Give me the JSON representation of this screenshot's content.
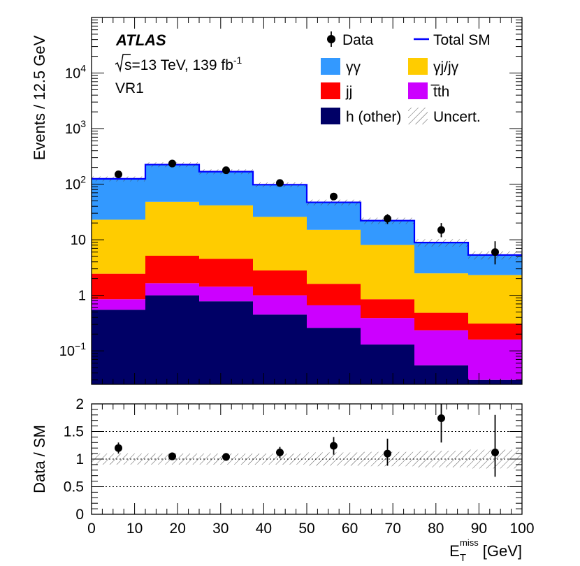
{
  "chart_data": [
    {
      "type": "stacked-histogram",
      "yscale": "log",
      "experiment": "ATLAS",
      "energy_prefix": "s=13 TeV, 139 fb",
      "energy_exp": "-1",
      "region": "VR1",
      "ylabel": "Events / 12.5 GeV",
      "ylim": [
        0.025,
        100000
      ],
      "y_ticks": [
        {
          "value": 0.1,
          "base": "10",
          "exp": "−1"
        },
        {
          "value": 1,
          "base": "1",
          "exp": ""
        },
        {
          "value": 10,
          "base": "10",
          "exp": ""
        },
        {
          "value": 100,
          "base": "10",
          "exp": "2"
        },
        {
          "value": 1000,
          "base": "10",
          "exp": "3"
        },
        {
          "value": 10000,
          "base": "10",
          "exp": "4"
        }
      ],
      "bin_edges": [
        0,
        12.5,
        25,
        37.5,
        50,
        62.5,
        75,
        87.5,
        100
      ],
      "stack": [
        {
          "name": "h (other)",
          "color": "#000066",
          "values": [
            0.55,
            1.0,
            0.78,
            0.45,
            0.26,
            0.13,
            0.055,
            0.03
          ]
        },
        {
          "name": "t̅th",
          "color": "#cc00ff",
          "values": [
            0.3,
            0.65,
            0.65,
            0.55,
            0.4,
            0.26,
            0.18,
            0.13
          ]
        },
        {
          "name": "jj",
          "color": "#ff0000",
          "values": [
            1.6,
            3.5,
            3.1,
            1.8,
            0.95,
            0.46,
            0.25,
            0.15
          ]
        },
        {
          "name": "γj/jγ",
          "color": "#ffcc00",
          "values": [
            20.5,
            43,
            37,
            23,
            13.5,
            7.2,
            2.0,
            2.0
          ]
        },
        {
          "name": "γγ",
          "color": "#3399ff",
          "values": [
            103,
            180,
            127,
            72,
            32,
            14,
            6.4,
            3.0
          ]
        }
      ],
      "total_sm": {
        "name": "Total SM",
        "color": "#0000ff",
        "values": [
          125,
          225,
          168,
          97.8,
          47.1,
          22.05,
          8.89,
          5.31
        ]
      },
      "data": {
        "name": "Data",
        "x": [
          6.25,
          18.75,
          31.25,
          43.75,
          56.25,
          68.75,
          81.25,
          93.75
        ],
        "values": [
          150,
          235,
          178,
          105,
          60,
          24,
          15,
          6
        ],
        "err_low": [
          12,
          15,
          13,
          10,
          7.7,
          4.9,
          3.9,
          2.4
        ],
        "err_high": [
          12,
          15,
          13,
          10,
          7.7,
          4.9,
          5.0,
          3.4
        ]
      },
      "uncertainty": {
        "name": "Uncert.",
        "rel": [
          0.1,
          0.1,
          0.1,
          0.1,
          0.12,
          0.13,
          0.15,
          0.17
        ]
      }
    },
    {
      "type": "ratio",
      "ylabel": "Data / SM",
      "xlabel_base": "E",
      "xlabel_sub": "T",
      "xlabel_sup": "miss",
      "xlabel_unit": "[GeV]",
      "xlim": [
        0,
        100
      ],
      "ylim": [
        0,
        2
      ],
      "x_ticks": [
        0,
        10,
        20,
        30,
        40,
        50,
        60,
        70,
        80,
        90,
        100
      ],
      "y_ticks": [
        "0",
        "0.5",
        "1",
        "1.5",
        "2"
      ],
      "reference_lines": [
        0.5,
        1,
        1.5
      ],
      "ratio": {
        "x": [
          6.25,
          18.75,
          31.25,
          43.75,
          56.25,
          68.75,
          81.25,
          93.75
        ],
        "values": [
          1.2,
          1.05,
          1.04,
          1.12,
          1.24,
          1.1,
          1.74,
          1.12
        ],
        "err_low": [
          0.1,
          0.07,
          0.07,
          0.1,
          0.16,
          0.22,
          0.44,
          0.44
        ],
        "err_high": [
          0.1,
          0.07,
          0.07,
          0.1,
          0.16,
          0.27,
          0.55,
          0.68
        ]
      },
      "band_rel": [
        0.1,
        0.1,
        0.1,
        0.1,
        0.12,
        0.13,
        0.15,
        0.17
      ]
    }
  ]
}
